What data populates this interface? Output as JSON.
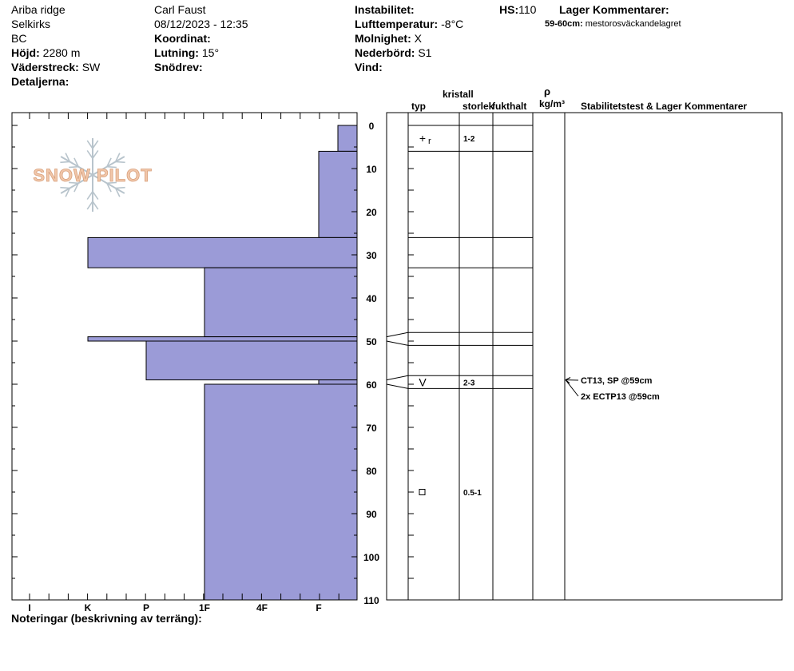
{
  "header": {
    "site": "Ariba ridge",
    "range": "Selkirks",
    "region": "BC",
    "elevation_label": "Höjd:",
    "elevation": "2280 m",
    "aspect_label": "Väderstreck:",
    "aspect": "SW",
    "details_label": "Detaljerna:",
    "observer": "Carl Faust",
    "datetime": "08/12/2023 - 12:35",
    "coord_label": "Koordinat:",
    "slope_label": "Lutning:",
    "slope": "15°",
    "drift_label": "Snödrev:",
    "instability_label": "Instabilitet:",
    "air_temp_label": "Lufttemperatur:",
    "air_temp": "-8°C",
    "sky_label": "Molnighet:",
    "sky": "X",
    "precip_label": "Nederbörd:",
    "precip": "S1",
    "wind_label": "Vind:",
    "hs_label": "HS:",
    "hs": "110",
    "layer_comments_label": "Lager Kommentarer:",
    "layer_comments": [
      {
        "range": "59-60cm:",
        "text": "mestorosväckandelagret"
      }
    ]
  },
  "logo_text": "SNOW PILOT",
  "notes_label": "Noteringar (beskrivning av terräng):",
  "columns": {
    "crystal": "kristall",
    "type": "typ",
    "size": "storlek",
    "moisture": "fukthalt",
    "rho": "ρ",
    "density_unit": "kg/m³",
    "stability": "Stabilitetstest & Lager Kommentarer"
  },
  "colors": {
    "hardness_fill": "#9b9bd7",
    "hardness_stroke": "#000000"
  },
  "chart_data": {
    "type": "bar",
    "orientation": "horizontal",
    "title": "",
    "y_axis": {
      "range": [
        0,
        110
      ],
      "ticks": [
        0,
        10,
        20,
        30,
        40,
        50,
        60,
        70,
        80,
        90,
        100,
        110
      ],
      "direction": "depth-down"
    },
    "x_axis": {
      "categories": [
        "I",
        "K",
        "P",
        "1F",
        "4F",
        "F"
      ],
      "direction": "right-to-left"
    },
    "hardness_bars": [
      {
        "top": 0,
        "bottom": 6,
        "hardness": "F-"
      },
      {
        "top": 6,
        "bottom": 26,
        "hardness": "F"
      },
      {
        "top": 26,
        "bottom": 33,
        "hardness": "K"
      },
      {
        "top": 33,
        "bottom": 49,
        "hardness": "1F"
      },
      {
        "top": 49,
        "bottom": 50,
        "hardness": "K"
      },
      {
        "top": 50,
        "bottom": 59,
        "hardness": "P"
      },
      {
        "top": 59,
        "bottom": 60,
        "hardness": "F"
      },
      {
        "top": 60,
        "bottom": 110,
        "hardness": "1F"
      }
    ],
    "layer_boundaries": [
      0,
      6,
      26,
      33,
      48,
      51,
      58,
      61
    ],
    "crystals": [
      {
        "depth": 3,
        "symbol": "+",
        "suffix": "r",
        "size": "1-2"
      },
      {
        "depth": 59.5,
        "symbol": "V",
        "suffix": "",
        "size": "2-3"
      },
      {
        "depth": 85,
        "symbol": "□",
        "suffix": "",
        "size": "0.5-1"
      }
    ],
    "stability_tests": [
      {
        "depth": 59,
        "text": "CT13, SP @59cm"
      },
      {
        "depth": 59,
        "text": "2x ECTP13 @59cm"
      }
    ]
  }
}
